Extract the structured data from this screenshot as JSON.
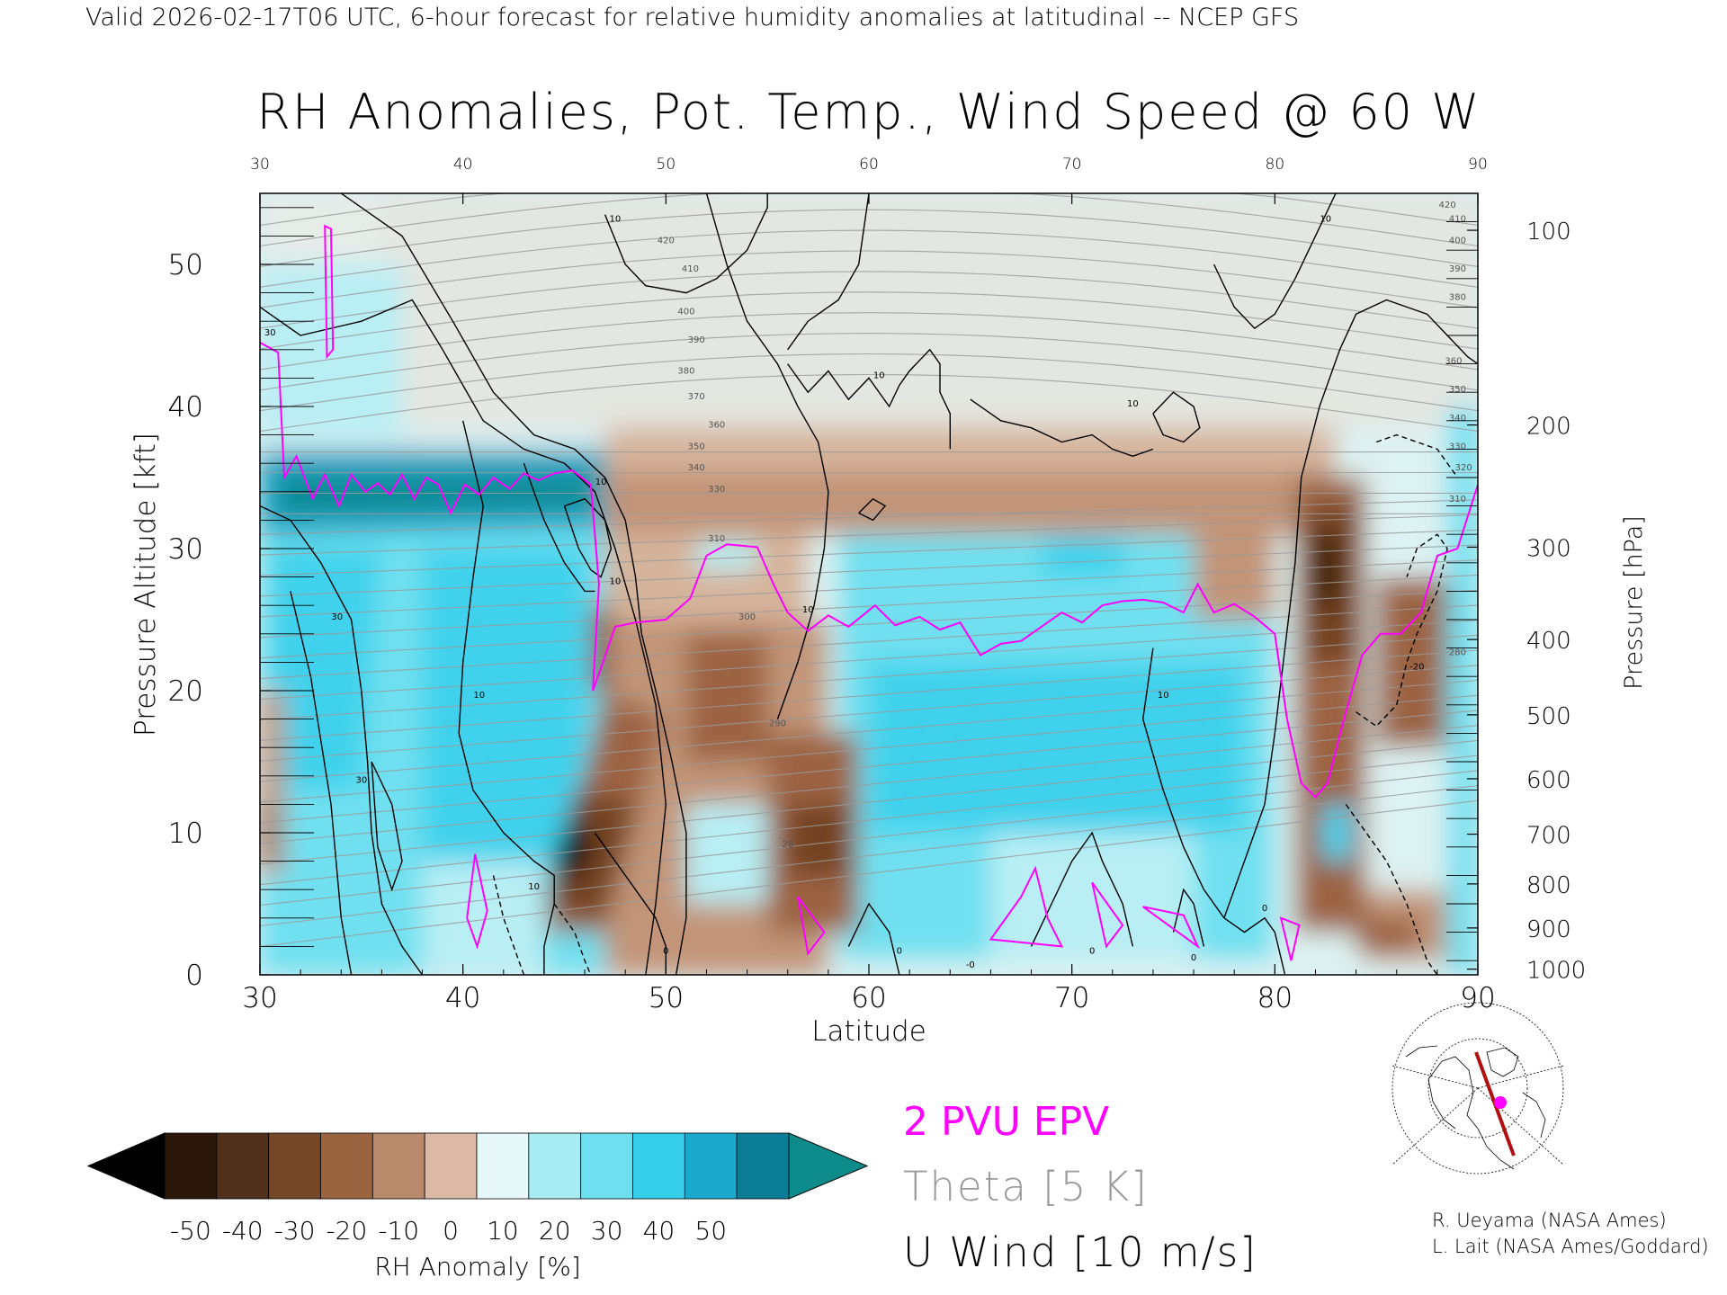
{
  "header": {
    "valid_line": "Valid 2026-02-17T06 UTC, 6-hour forecast for relative humidity anomalies at latitudinal -- NCEP GFS"
  },
  "chart_data": {
    "type": "heatmap",
    "title": "RH Anomalies, Pot. Temp., Wind Speed @ 60 W",
    "xlabel": "Latitude",
    "ylabel": "Pressure Altitude [kft]",
    "ylabel_right": "Pressure [hPa]",
    "xlim": [
      30,
      90
    ],
    "ylim": [
      0,
      55
    ],
    "x_ticks": [
      30,
      40,
      50,
      60,
      70,
      80,
      90
    ],
    "y_ticks": [
      0,
      10,
      20,
      30,
      40,
      50
    ],
    "pressure_ticks": [
      {
        "hpa": 100,
        "kft": 52.4
      },
      {
        "hpa": 200,
        "kft": 38.7
      },
      {
        "hpa": 300,
        "kft": 30.1
      },
      {
        "hpa": 400,
        "kft": 23.6
      },
      {
        "hpa": 500,
        "kft": 18.3
      },
      {
        "hpa": 600,
        "kft": 13.8
      },
      {
        "hpa": 700,
        "kft": 9.9
      },
      {
        "hpa": 800,
        "kft": 6.4
      },
      {
        "hpa": 900,
        "kft": 3.3
      },
      {
        "hpa": 1000,
        "kft": 0.4
      }
    ],
    "theta_labels": [
      {
        "text": "420",
        "x": 50,
        "y": 51.5
      },
      {
        "text": "410",
        "x": 51.2,
        "y": 49.5
      },
      {
        "text": "400",
        "x": 51,
        "y": 46.5
      },
      {
        "text": "390",
        "x": 51.5,
        "y": 44.5
      },
      {
        "text": "380",
        "x": 51,
        "y": 42.3
      },
      {
        "text": "370",
        "x": 51.5,
        "y": 40.5
      },
      {
        "text": "360",
        "x": 52.5,
        "y": 38.5
      },
      {
        "text": "350",
        "x": 51.5,
        "y": 37
      },
      {
        "text": "340",
        "x": 51.5,
        "y": 35.5
      },
      {
        "text": "330",
        "x": 52.5,
        "y": 34
      },
      {
        "text": "310",
        "x": 52.5,
        "y": 30.5
      },
      {
        "text": "300",
        "x": 54,
        "y": 25
      },
      {
        "text": "290",
        "x": 55.5,
        "y": 17.5
      },
      {
        "text": "28",
        "x": 56,
        "y": 9
      },
      {
        "text": "420",
        "x": 88.5,
        "y": 54
      },
      {
        "text": "410",
        "x": 89,
        "y": 53
      },
      {
        "text": "400",
        "x": 89,
        "y": 51.5
      },
      {
        "text": "390",
        "x": 89,
        "y": 49.5
      },
      {
        "text": "380",
        "x": 89,
        "y": 47.5
      },
      {
        "text": "360",
        "x": 88.8,
        "y": 43
      },
      {
        "text": "350",
        "x": 89,
        "y": 41
      },
      {
        "text": "340",
        "x": 89,
        "y": 39
      },
      {
        "text": "330",
        "x": 89,
        "y": 37
      },
      {
        "text": "320",
        "x": 89.3,
        "y": 35.5
      },
      {
        "text": "310",
        "x": 89,
        "y": 33.3
      },
      {
        "text": "280",
        "x": 89,
        "y": 22.5
      }
    ],
    "wind_labels": [
      {
        "text": "10",
        "x": 47.5,
        "y": 53
      },
      {
        "text": "10",
        "x": 60.5,
        "y": 42
      },
      {
        "text": "10",
        "x": 73,
        "y": 40
      },
      {
        "text": "10",
        "x": 82.5,
        "y": 53
      },
      {
        "text": "30",
        "x": 30.5,
        "y": 45
      },
      {
        "text": "30",
        "x": 33.8,
        "y": 25
      },
      {
        "text": "30",
        "x": 35,
        "y": 13.5
      },
      {
        "text": "10",
        "x": 40.8,
        "y": 19.5
      },
      {
        "text": "10",
        "x": 43.5,
        "y": 6
      },
      {
        "text": "10",
        "x": 57,
        "y": 25.5
      },
      {
        "text": "10",
        "x": 74.5,
        "y": 19.5
      },
      {
        "text": "0",
        "x": 50,
        "y": 1.5
      },
      {
        "text": "0",
        "x": 61.5,
        "y": 1.5
      },
      {
        "text": "0",
        "x": 79.5,
        "y": 4.5
      },
      {
        "text": "0",
        "x": 71,
        "y": 1.5
      },
      {
        "text": "-0",
        "x": 65,
        "y": 0.5
      },
      {
        "text": "0",
        "x": 76,
        "y": 1
      },
      {
        "text": "-20",
        "x": 87,
        "y": 21.5
      },
      {
        "text": "10",
        "x": 46.8,
        "y": 34.5
      },
      {
        "text": "10",
        "x": 47.5,
        "y": 27.5
      }
    ],
    "tropopause_2pvu": [
      [
        30,
        44.5
      ],
      [
        30.9,
        43.8
      ],
      [
        31.2,
        35
      ],
      [
        31.8,
        36.5
      ],
      [
        32.6,
        33.5
      ],
      [
        33.2,
        35.2
      ],
      [
        33.9,
        33
      ],
      [
        34.5,
        35.2
      ],
      [
        35.2,
        34
      ],
      [
        35.8,
        34.6
      ],
      [
        36.4,
        33.8
      ],
      [
        37,
        35.2
      ],
      [
        37.6,
        33.5
      ],
      [
        38.2,
        35
      ],
      [
        38.8,
        34.5
      ],
      [
        39.4,
        32.5
      ],
      [
        40.1,
        34.5
      ],
      [
        40.8,
        33.8
      ],
      [
        41.5,
        35
      ],
      [
        42.3,
        34.2
      ],
      [
        43,
        35.3
      ],
      [
        43.7,
        34.8
      ],
      [
        44.5,
        35.3
      ],
      [
        45.4,
        35.5
      ],
      [
        46.3,
        34.5
      ],
      [
        46.7,
        27.5
      ],
      [
        46.4,
        20
      ],
      [
        46.9,
        22
      ],
      [
        47.5,
        24.5
      ],
      [
        48.5,
        24.8
      ],
      [
        50,
        25
      ],
      [
        51.2,
        26.5
      ],
      [
        52,
        29.5
      ],
      [
        53,
        30.3
      ],
      [
        54.5,
        30.1
      ],
      [
        55.3,
        27.5
      ],
      [
        56,
        25.5
      ],
      [
        57,
        24.2
      ],
      [
        58,
        25.3
      ],
      [
        59,
        24.5
      ],
      [
        60.3,
        26
      ],
      [
        61.3,
        24.6
      ],
      [
        62.5,
        25.2
      ],
      [
        63.5,
        24.3
      ],
      [
        64.5,
        24.8
      ],
      [
        65.5,
        22.5
      ],
      [
        66.5,
        23.3
      ],
      [
        67.5,
        23.5
      ],
      [
        68.5,
        24.5
      ],
      [
        69.5,
        25.5
      ],
      [
        70.5,
        24.8
      ],
      [
        71.5,
        26
      ],
      [
        72.5,
        26.3
      ],
      [
        73.5,
        26.4
      ],
      [
        74.5,
        26.2
      ],
      [
        75.5,
        25.5
      ],
      [
        76.2,
        27.5
      ],
      [
        77,
        25.5
      ],
      [
        78,
        26.1
      ],
      [
        79,
        25.2
      ],
      [
        80,
        24
      ],
      [
        80.6,
        18
      ],
      [
        81.3,
        13.5
      ],
      [
        82,
        12.5
      ],
      [
        82.6,
        13.5
      ],
      [
        83.4,
        18
      ],
      [
        84.3,
        22.5
      ],
      [
        85.2,
        24
      ],
      [
        86.2,
        24
      ],
      [
        87.2,
        25.5
      ],
      [
        88,
        29.5
      ],
      [
        89,
        30
      ],
      [
        90,
        34.5
      ]
    ],
    "epv_blobs": [
      [
        [
          33.2,
          52.7
        ],
        [
          33.5,
          52.5
        ],
        [
          33.6,
          44
        ],
        [
          33.3,
          43.5
        ]
      ],
      [
        [
          40.2,
          4
        ],
        [
          40.6,
          8.5
        ],
        [
          41.2,
          4.5
        ],
        [
          40.7,
          2
        ]
      ],
      [
        [
          56.5,
          5.5
        ],
        [
          57.8,
          3
        ],
        [
          57,
          1.5
        ]
      ],
      [
        [
          66,
          2.5
        ],
        [
          67.5,
          5.5
        ],
        [
          68.2,
          7.5
        ],
        [
          68.8,
          4
        ],
        [
          69.5,
          2
        ]
      ],
      [
        [
          71,
          6.5
        ],
        [
          71.7,
          2
        ],
        [
          72.5,
          3.5
        ]
      ],
      [
        [
          73.5,
          4.8
        ],
        [
          75.5,
          4.2
        ],
        [
          76.2,
          2
        ]
      ],
      [
        [
          80.3,
          4
        ],
        [
          80.8,
          1
        ],
        [
          81.2,
          3.5
        ]
      ]
    ],
    "colorbar": {
      "label": "RH Anomaly [%]",
      "ticks": [
        "-50",
        "-40",
        "-30",
        "-20",
        "-10",
        "0",
        "10",
        "20",
        "30",
        "40",
        "50"
      ],
      "colors": [
        "#2a170a",
        "#50301a",
        "#754726",
        "#9a6440",
        "#ba8a6c",
        "#dcb9a5",
        "#e5f7f8",
        "#a7ecf3",
        "#6edff0",
        "#34cdea",
        "#1aa9cc",
        "#0c7d96"
      ],
      "under_color": "#000000",
      "over_color": "#0d8a8a"
    },
    "legend": {
      "epv": "2 PVU EPV",
      "theta": "Theta [5 K]",
      "uwind": "U Wind [10 m/s]",
      "epv_color": "#ff00ff",
      "theta_color": "#999999",
      "uwind_color": "#000000"
    }
  },
  "credits": {
    "line1": "R. Ueyama (NASA Ames)",
    "line2": "L. Lait (NASA Ames/Goddard)"
  }
}
